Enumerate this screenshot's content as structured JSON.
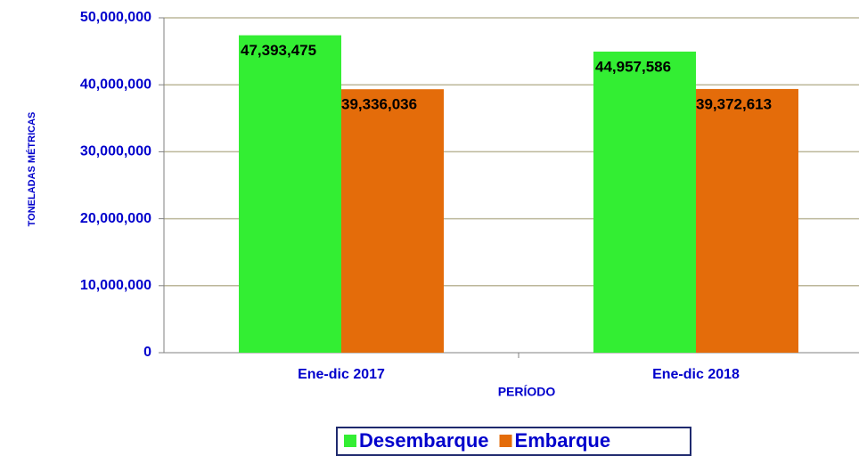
{
  "chart_data": {
    "type": "bar",
    "categories": [
      "Ene-dic 2017",
      "Ene-dic 2018"
    ],
    "series": [
      {
        "name": "Desembarque",
        "color": "#33ee33",
        "values": [
          47393475,
          44957586
        ],
        "value_labels": [
          "47,393,475",
          "44,957,586"
        ]
      },
      {
        "name": "Embarque",
        "color": "#e46c0a",
        "values": [
          39336036,
          39372613
        ],
        "value_labels": [
          "39,336,036",
          "39,372,613"
        ]
      }
    ],
    "xlabel": "PERÍODO",
    "ylabel": "TONELADAS MÉTRICAS",
    "ylim": [
      0,
      50000000
    ],
    "yticks": [
      0,
      {
        "value": 10000000,
        "label": "10,000,000"
      },
      {
        "value": 20000000,
        "label": "20,000,000"
      },
      {
        "value": 30000000,
        "label": "30,000,000"
      },
      {
        "value": 40000000,
        "label": "40,000,000"
      },
      {
        "value": 50000000,
        "label": "50,000,000"
      }
    ],
    "grid": true,
    "legend": "bottom"
  }
}
